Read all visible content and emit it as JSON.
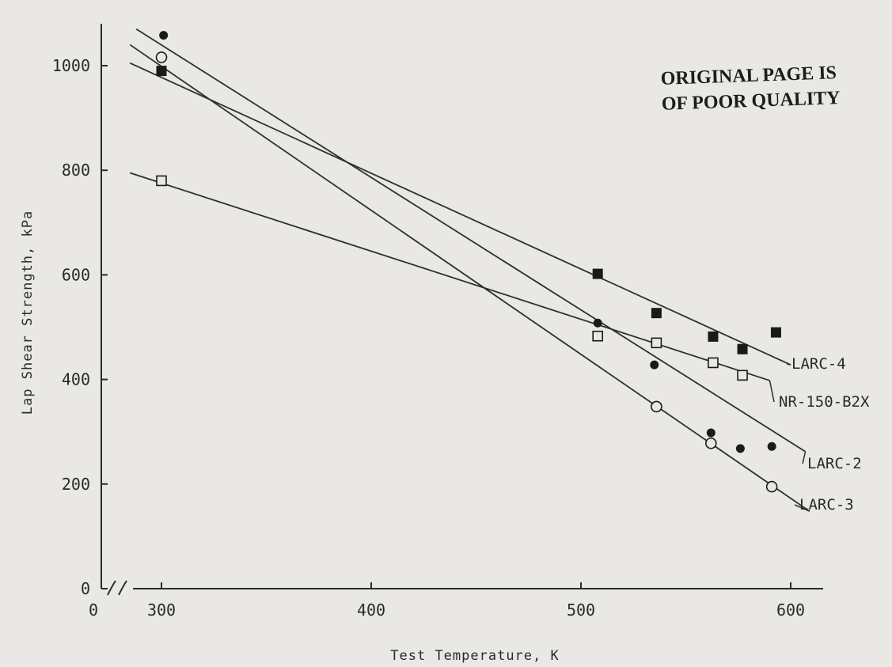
{
  "chart_data": {
    "type": "scatter",
    "xlabel": "Test Temperature, K",
    "ylabel": "Lap Shear Strength, kPa",
    "xlim": [
      250,
      620
    ],
    "ylim": [
      0,
      1100
    ],
    "x_ticks": [
      {
        "value": 0,
        "label": "0"
      },
      {
        "value": 300,
        "label": "300"
      },
      {
        "value": 400,
        "label": "400"
      },
      {
        "value": 500,
        "label": "500"
      },
      {
        "value": 600,
        "label": "600"
      }
    ],
    "y_ticks": [
      0,
      200,
      400,
      600,
      800,
      1000
    ],
    "axis_break": true,
    "grid": false,
    "annotation": [
      "ORIGINAL PAGE IS",
      "OF POOR QUALITY"
    ],
    "series": [
      {
        "name": "LARC-4",
        "marker": "filled-square",
        "points": [
          [
            300,
            990
          ],
          [
            508,
            602
          ],
          [
            536,
            527
          ],
          [
            563,
            482
          ],
          [
            577,
            458
          ],
          [
            593,
            490
          ]
        ],
        "fit": [
          [
            285,
            1005
          ],
          [
            600,
            428
          ]
        ]
      },
      {
        "name": "NR-150-B2X",
        "marker": "open-square",
        "points": [
          [
            300,
            780
          ],
          [
            508,
            483
          ],
          [
            536,
            470
          ],
          [
            563,
            432
          ],
          [
            577,
            408
          ]
        ],
        "fit": [
          [
            285,
            795
          ],
          [
            590,
            398
          ]
        ]
      },
      {
        "name": "LARC-2",
        "marker": "filled-circle",
        "points": [
          [
            301,
            1058
          ],
          [
            508,
            508
          ],
          [
            535,
            428
          ],
          [
            562,
            298
          ],
          [
            576,
            268
          ],
          [
            591,
            272
          ]
        ],
        "fit": [
          [
            288,
            1070
          ],
          [
            607,
            262
          ]
        ]
      },
      {
        "name": "LARC-3",
        "marker": "open-circle",
        "points": [
          [
            300,
            1016
          ],
          [
            536,
            348
          ],
          [
            562,
            278
          ],
          [
            591,
            195
          ]
        ],
        "fit": [
          [
            285,
            1040
          ],
          [
            609,
            148
          ]
        ]
      }
    ]
  }
}
